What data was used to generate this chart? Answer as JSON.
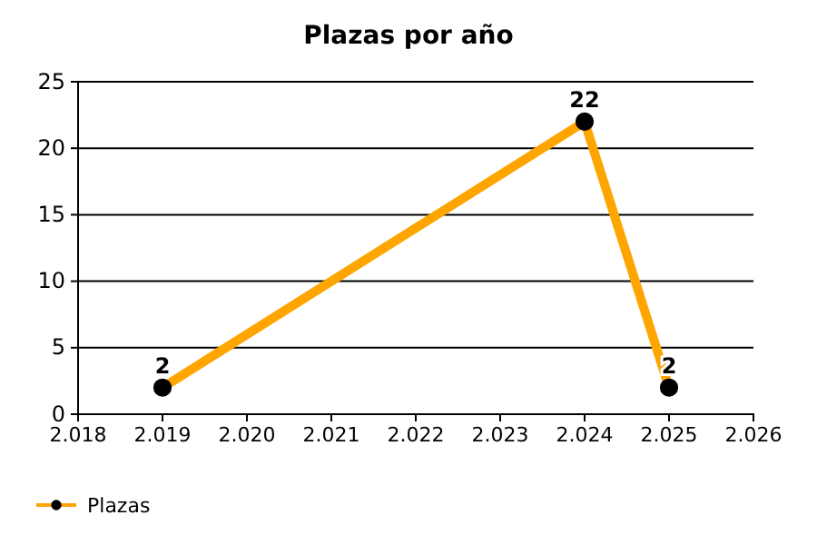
{
  "chart_data": {
    "type": "line",
    "title": "Plazas por año",
    "x": [
      2019,
      2024,
      2025
    ],
    "series": [
      {
        "name": "Plazas",
        "color": "#ffa500",
        "values": [
          2,
          22,
          2
        ]
      }
    ],
    "xlim": [
      2018,
      2026
    ],
    "xticks": [
      {
        "value": 2018,
        "label": "2.018"
      },
      {
        "value": 2019,
        "label": "2.019"
      },
      {
        "value": 2020,
        "label": "2.020"
      },
      {
        "value": 2021,
        "label": "2.021"
      },
      {
        "value": 2022,
        "label": "2.022"
      },
      {
        "value": 2023,
        "label": "2.023"
      },
      {
        "value": 2024,
        "label": "2.024"
      },
      {
        "value": 2025,
        "label": "2.025"
      },
      {
        "value": 2026,
        "label": "2.026"
      }
    ],
    "ylim": [
      0,
      25
    ],
    "yticks": [
      0,
      5,
      10,
      15,
      20,
      25
    ],
    "grid": "y",
    "legend": "bottom left",
    "marker": "circle",
    "line_style": "solid",
    "data_labels": true
  }
}
